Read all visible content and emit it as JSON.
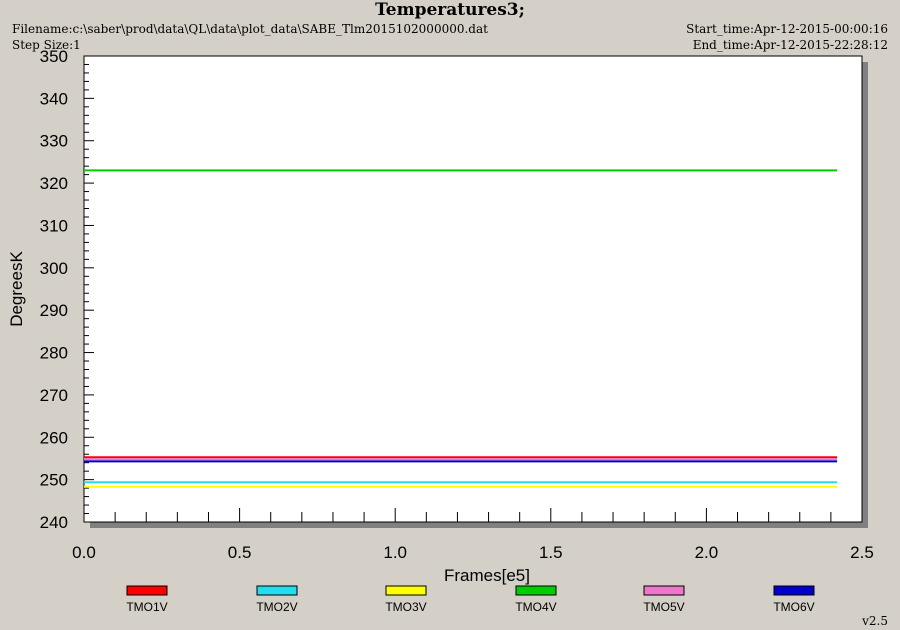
{
  "header": {
    "title": "Temperatures3;",
    "filename": "Filename:c:\\saber\\prod\\data\\QL\\data\\plot_data\\SABE_Tlm2015102000000.dat",
    "step_size": "Step Size:1",
    "start_time": "Start_time:Apr-12-2015-00:00:16",
    "end_time": "End_time:Apr-12-2015-22:28:12"
  },
  "footer": {
    "version": "v2.5"
  },
  "chart_data": {
    "type": "line",
    "title": "Temperatures3;",
    "xlabel": "Frames[e5]",
    "ylabel": "DegreesK",
    "xlim": [
      0,
      2.5
    ],
    "ylim": [
      240,
      350
    ],
    "xticks": [
      "0.0",
      "0.5",
      "1.0",
      "1.5",
      "2.0",
      "2.5"
    ],
    "yticks": [
      "240",
      "250",
      "260",
      "270",
      "280",
      "290",
      "300",
      "310",
      "320",
      "330",
      "340",
      "350"
    ],
    "grid": false,
    "legend_position": "bottom",
    "series": [
      {
        "name": "TMO1V",
        "color": "#ff0000",
        "x": [
          0.0,
          2.42
        ],
        "y": [
          255.3,
          255.3
        ]
      },
      {
        "name": "TMO2V",
        "color": "#22ddee",
        "x": [
          0.0,
          2.42
        ],
        "y": [
          249.4,
          249.4
        ]
      },
      {
        "name": "TMO3V",
        "color": "#ffff00",
        "x": [
          0.0,
          2.42
        ],
        "y": [
          248.3,
          248.3
        ]
      },
      {
        "name": "TMO4V",
        "color": "#00cc00",
        "x": [
          0.0,
          2.42
        ],
        "y": [
          323.0,
          323.0
        ]
      },
      {
        "name": "TMO5V",
        "color": "#ee77cc",
        "x": [
          0.0,
          2.42
        ],
        "y": [
          254.8,
          254.8
        ]
      },
      {
        "name": "TMO6V",
        "color": "#0000cc",
        "x": [
          0.0,
          2.42
        ],
        "y": [
          254.3,
          254.3
        ]
      }
    ]
  }
}
